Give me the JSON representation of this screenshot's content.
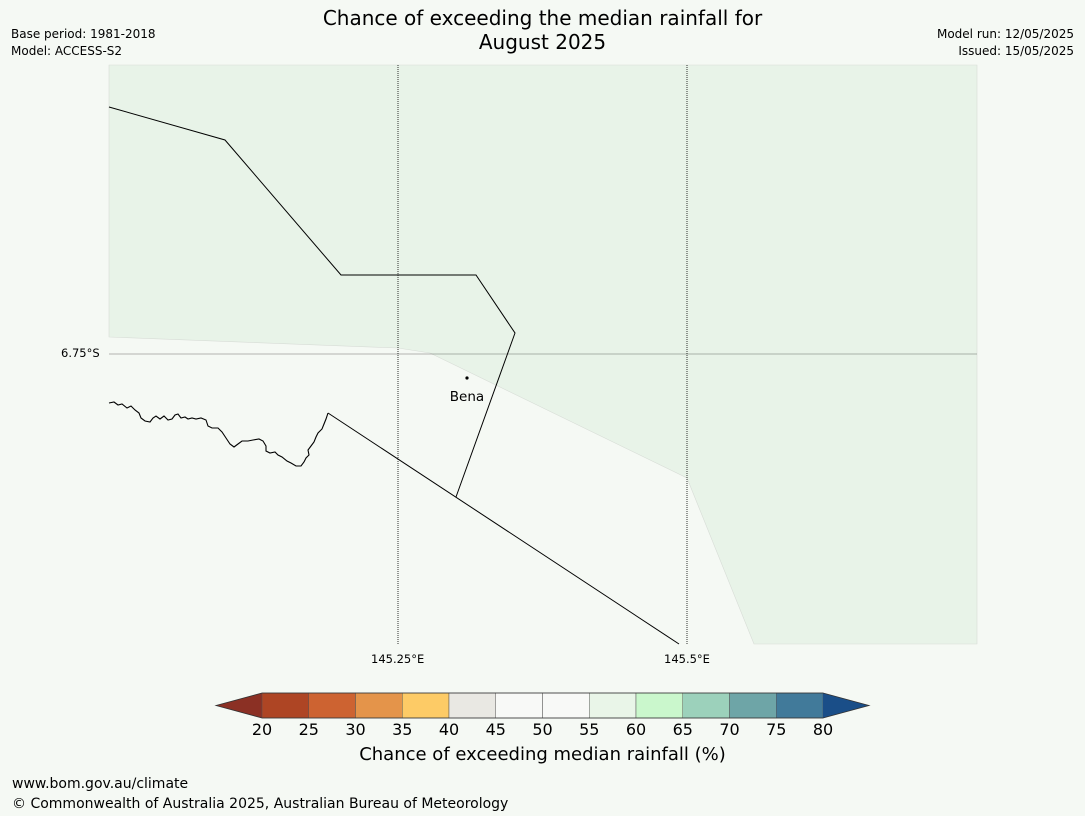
{
  "header": {
    "title_line1": "Chance of exceeding the median rainfall for",
    "title_line2": "August 2025",
    "base_period": "Base period: 1981-2018",
    "model": "Model: ACCESS-S2",
    "model_run": "Model run: 12/05/2025",
    "issued": "Issued: 15/05/2025"
  },
  "map": {
    "lat_label": "6.75°S",
    "lon_labels": [
      "145.25°E",
      "145.5°E"
    ],
    "place": "Bena",
    "colors": {
      "band_55_60": "#e8f3e8",
      "band_50_55": "#f5f9f4",
      "border_line": "#000000",
      "grid_line": "#000000"
    }
  },
  "colorbar": {
    "ticks": [
      "20",
      "25",
      "30",
      "35",
      "40",
      "45",
      "50",
      "55",
      "60",
      "65",
      "70",
      "75",
      "80"
    ],
    "colors": [
      "#8b3024",
      "#ae4524",
      "#cd6331",
      "#e4944a",
      "#fdcb66",
      "#e9e8e3",
      "#f8f9f7",
      "#f8f9f7",
      "#e9f5e8",
      "#caf7cc",
      "#9cd1bb",
      "#6ea5a7",
      "#417a9a",
      "#1a4e88"
    ],
    "label": "Chance of exceeding median rainfall (%)"
  },
  "footer": {
    "url": "www.bom.gov.au/climate",
    "copyright": "© Commonwealth of Australia 2025, Australian Bureau of Meteorology"
  }
}
